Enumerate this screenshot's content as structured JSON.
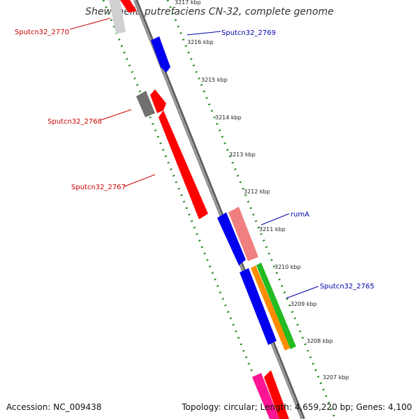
{
  "title": "Shewanella putrefaciens CN-32, complete genome",
  "accession": "Accession: NC_009438",
  "summary": "Topology: circular; Length: 4,659,220 bp; Genes: 4,100",
  "colors": {
    "backbone": "#8a8a8a",
    "dots": "#2a8a2a",
    "label_red": "#cc0000",
    "label_blue": "#0000aa",
    "tick_text": "#222222"
  },
  "ticks": [
    "3217 kbp",
    "3216 kbp",
    "3215 kbp",
    "3214 kbp",
    "3213 kbp",
    "3212 kbp",
    "3211 kbp",
    "3210 kbp",
    "3209 kbp",
    "3208 kbp",
    "3207 kbp"
  ],
  "gene_labels": [
    {
      "text": "Sputcn32_2770",
      "color": "#cc0000"
    },
    {
      "text": "Sputcn32_2769",
      "color": "#0000aa"
    },
    {
      "text": "Sputcn32_2768",
      "color": "#cc0000"
    },
    {
      "text": "Sputcn32_2767",
      "color": "#cc0000"
    },
    {
      "text": "rumA",
      "color": "#0000aa"
    },
    {
      "text": "Sputcn32_2765",
      "color": "#0000aa"
    }
  ],
  "gene_colors": [
    "#ff0000",
    "#0000ee",
    "#707070",
    "#f08080",
    "#22bb22",
    "#ff8c00",
    "#ff1493",
    "#d0d0d0"
  ]
}
